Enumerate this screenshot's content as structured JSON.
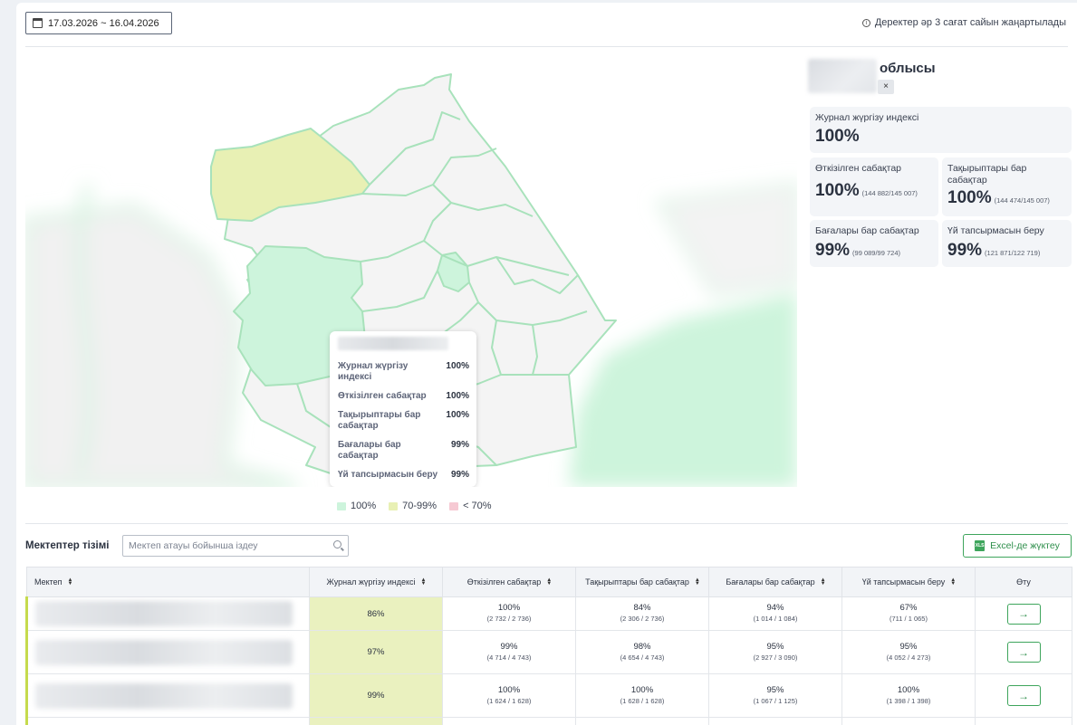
{
  "header": {
    "date_range": "17.03.2026 ~ 16.04.2026",
    "update_note": "Деректер әр 3 сағат сайын жаңартылады"
  },
  "colors": {
    "good": "#cdf4dc",
    "mid": "#e8f0b4",
    "bad": "#f6c9d3",
    "border": "#a8e2bb",
    "accent": "#3ea55c"
  },
  "icons": [
    "calendar-icon",
    "info-icon",
    "close-icon",
    "search-icon",
    "excel-icon",
    "arrow-right-icon",
    "sort-icon"
  ],
  "tooltip": {
    "rows": [
      {
        "label": "Журнал жүргізу индексі",
        "value": "100%"
      },
      {
        "label": "Өткізілген сабақтар",
        "value": "100%"
      },
      {
        "label": "Тақырыптары бар сабақтар",
        "value": "100%"
      },
      {
        "label": "Бағалары бар сабақтар",
        "value": "99%"
      },
      {
        "label": "Үй тапсырмасын беру",
        "value": "99%"
      }
    ]
  },
  "legend": [
    {
      "label": "100%",
      "color": "#cdf4dc"
    },
    {
      "label": "70-99%",
      "color": "#e8f0b4"
    },
    {
      "label": "< 70%",
      "color": "#f6c9d3"
    }
  ],
  "region": {
    "name": "облысы",
    "clear": "×"
  },
  "stats": {
    "journal": {
      "label": "Журнал жүргізу индексі",
      "value": "100%"
    },
    "held": {
      "label": "Өткізілген сабақтар",
      "value": "100%",
      "detail": "(144 882/145 007)"
    },
    "topics": {
      "label": "Тақырыптары бар сабақтар",
      "value": "100%",
      "detail": "(144 474/145 007)"
    },
    "grades": {
      "label": "Бағалары бар сабақтар",
      "value": "99%",
      "detail": "(99 089/99 724)"
    },
    "homework": {
      "label": "Үй тапсырмасын беру",
      "value": "99%",
      "detail": "(121 871/122 719)"
    }
  },
  "schools": {
    "title": "Мектептер тізімі",
    "search_placeholder": "Мектеп атауы бойынша іздеу",
    "excel_label": "Excel-де жүктеу",
    "columns": [
      "Мектеп",
      "Журнал жүргізу индексі",
      "Өткізілген сабақтар",
      "Тақырыптары бар сабақтар",
      "Бағалары бар сабақтар",
      "Үй тапсырмасын беру",
      "Өту"
    ],
    "rows": [
      {
        "index": "86%",
        "held": "100%",
        "held_f": "(2 732 / 2 736)",
        "topics": "84%",
        "topics_f": "(2 306 / 2 736)",
        "grades": "94%",
        "grades_f": "(1 014 / 1 084)",
        "hw": "67%",
        "hw_f": "(711 / 1 065)"
      },
      {
        "index": "97%",
        "held": "99%",
        "held_f": "(4 714 / 4 743)",
        "topics": "98%",
        "topics_f": "(4 654 / 4 743)",
        "grades": "95%",
        "grades_f": "(2 927 / 3 090)",
        "hw": "95%",
        "hw_f": "(4 052 / 4 273)"
      },
      {
        "index": "99%",
        "held": "100%",
        "held_f": "(1 624 / 1 628)",
        "topics": "100%",
        "topics_f": "(1 628 / 1 628)",
        "grades": "95%",
        "grades_f": "(1 067 / 1 125)",
        "hw": "100%",
        "hw_f": "(1 398 / 1 398)"
      }
    ]
  }
}
